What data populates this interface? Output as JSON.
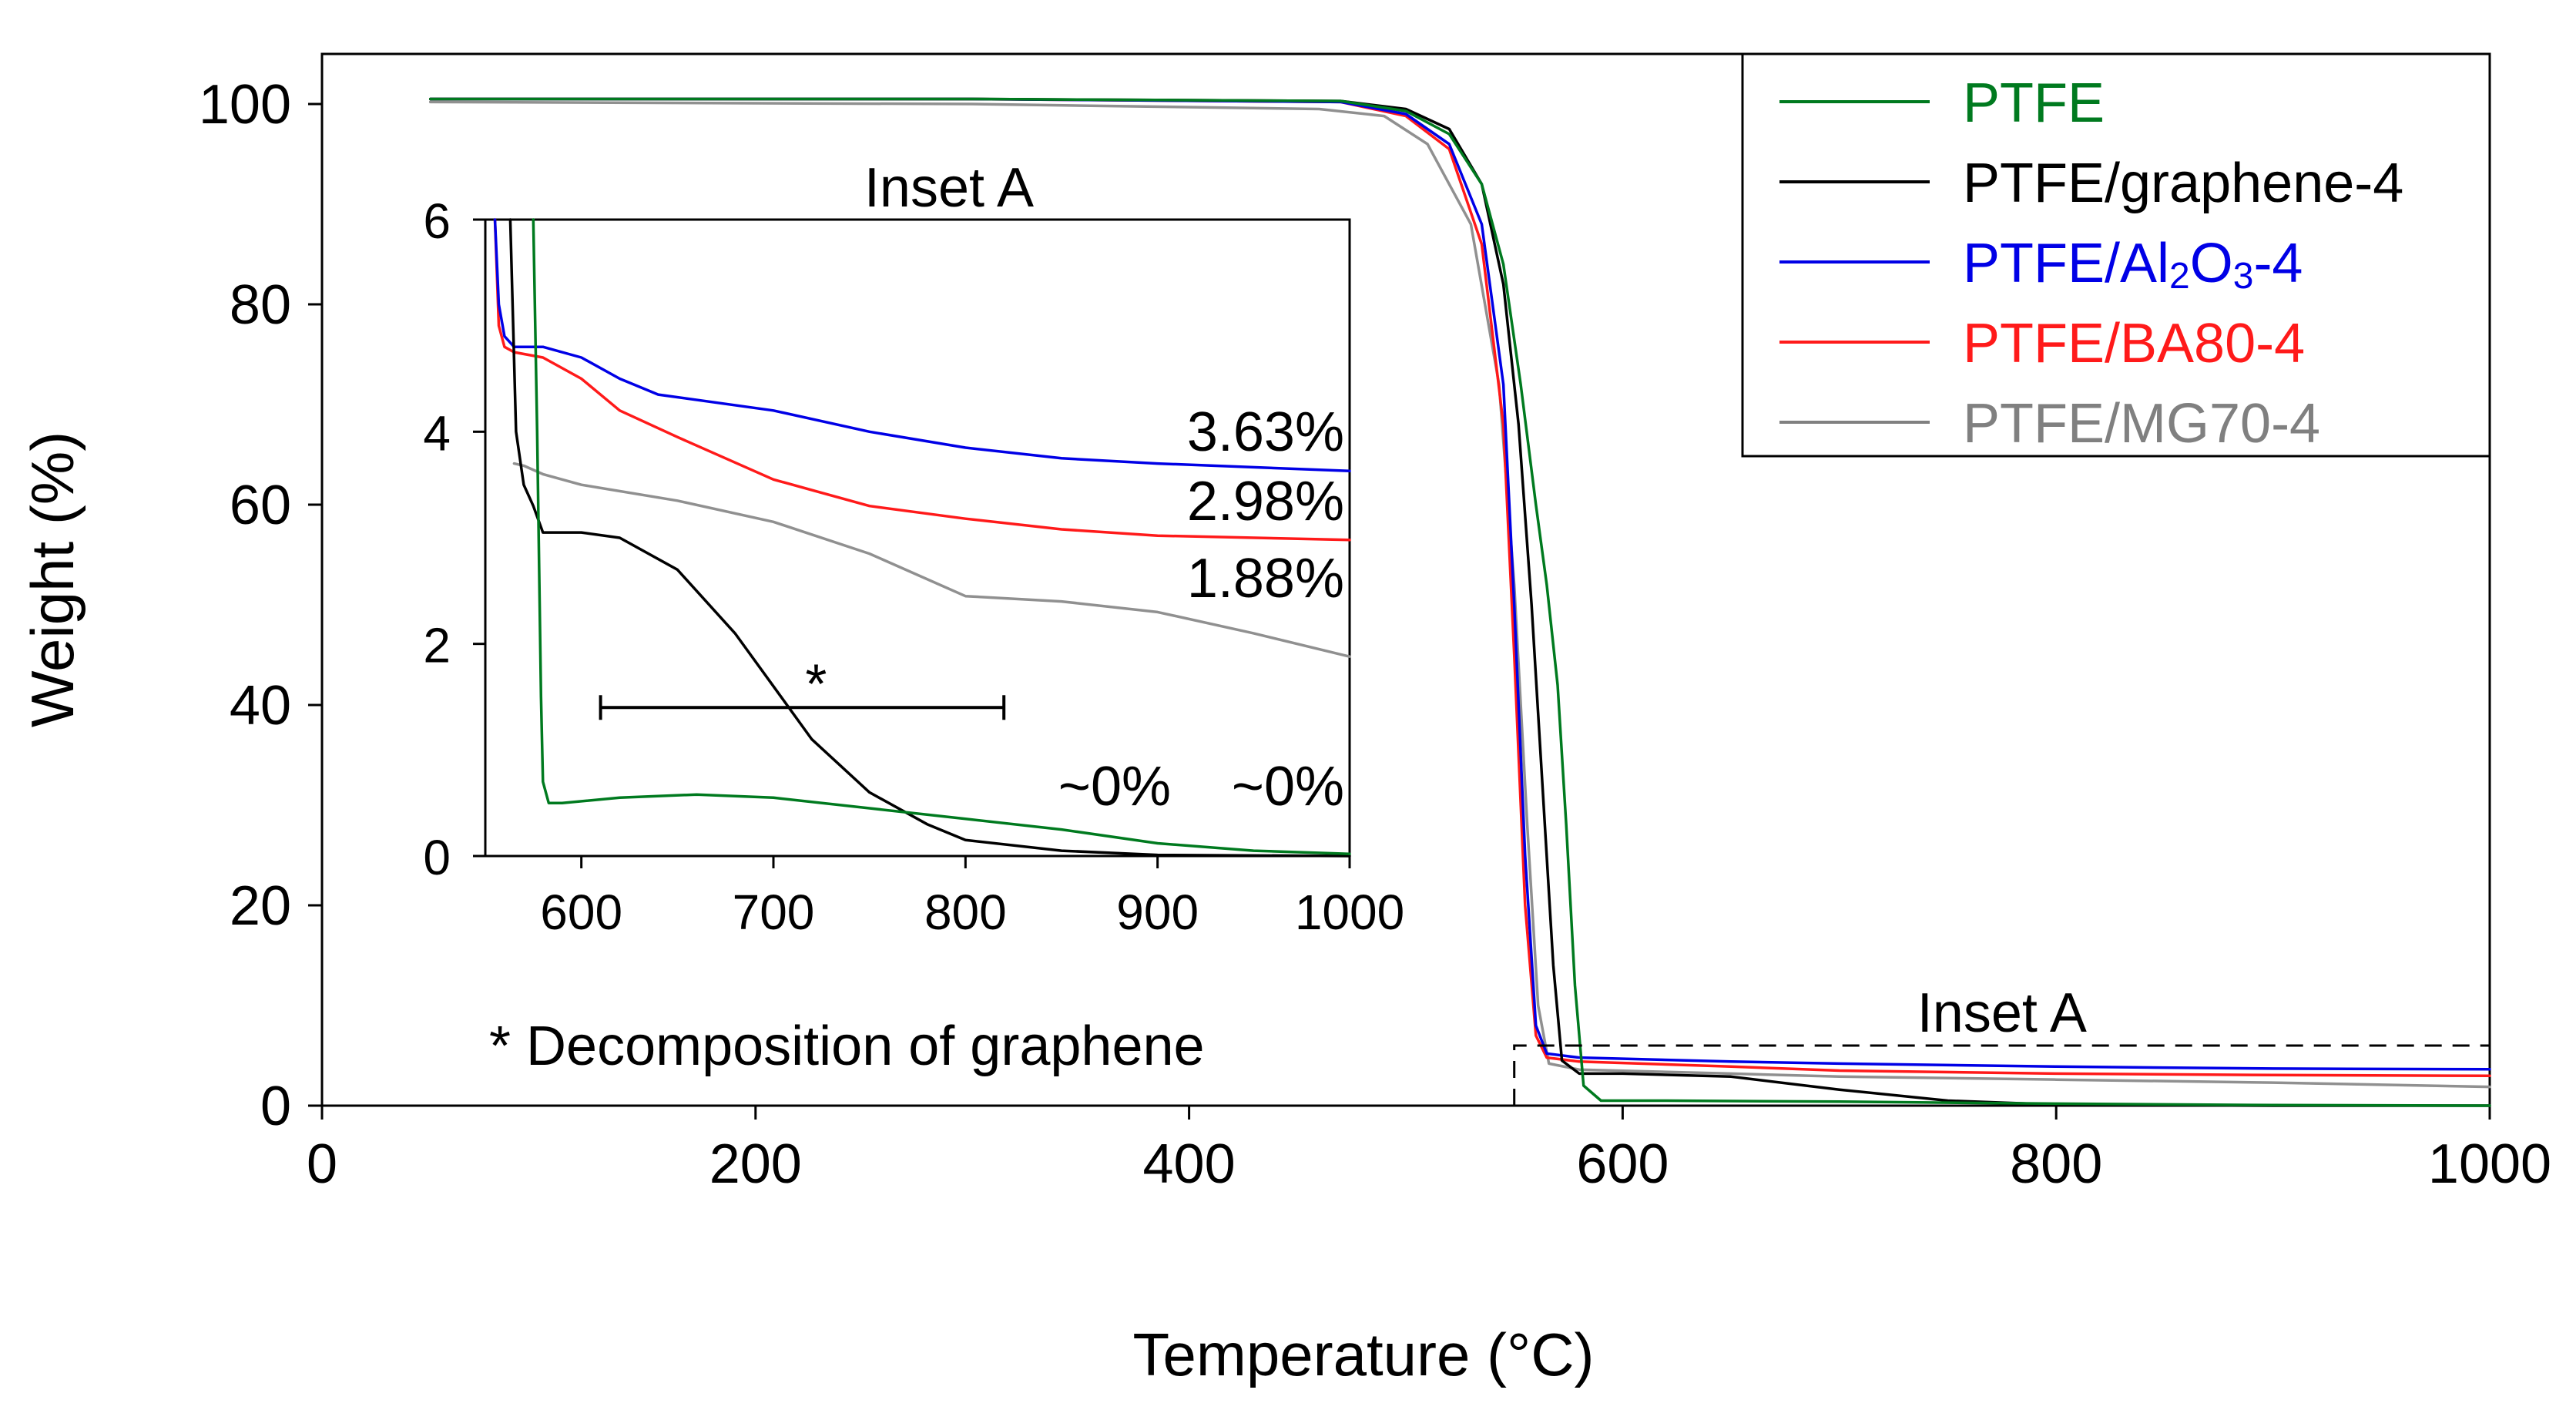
{
  "chart_data": [
    {
      "name": "main",
      "type": "line",
      "title": "",
      "xlabel": "Temperature (°C)",
      "ylabel": "Weight (%)",
      "xlim": [
        0,
        1000
      ],
      "ylim": [
        0,
        105
      ],
      "xticks": [
        0,
        200,
        400,
        600,
        800,
        1000
      ],
      "yticks": [
        0,
        20,
        40,
        60,
        80,
        100
      ],
      "legend_position": "top-right",
      "series": [
        {
          "name": "PTFE",
          "color": "#007a1f",
          "x": [
            50,
            300,
            470,
            500,
            520,
            535,
            545,
            553,
            560,
            565,
            570,
            574,
            578,
            582,
            590,
            620,
            700,
            800,
            900,
            1000
          ],
          "y": [
            100.5,
            100.5,
            100.3,
            99.3,
            97,
            92,
            84,
            72,
            60,
            52,
            42,
            28,
            12,
            2,
            0.5,
            0.5,
            0.4,
            0.2,
            0.05,
            0.0
          ]
        },
        {
          "name": "PTFE/graphene-4",
          "color": "#000000",
          "x": [
            50,
            300,
            470,
            500,
            520,
            535,
            545,
            552,
            558,
            563,
            568,
            572,
            580,
            600,
            650,
            700,
            750,
            800,
            900,
            1000
          ],
          "y": [
            100.5,
            100.5,
            100.3,
            99.5,
            97.5,
            92,
            82,
            68,
            50,
            32,
            14,
            4.5,
            3.2,
            3.2,
            2.9,
            1.6,
            0.5,
            0.1,
            0.0,
            0.0
          ]
        },
        {
          "name": "PTFE/Al2O3-4",
          "color": "#0000e6",
          "x": [
            50,
            300,
            470,
            500,
            520,
            535,
            545,
            550,
            555,
            560,
            565,
            580,
            650,
            700,
            800,
            900,
            1000
          ],
          "y": [
            100.5,
            100.5,
            100.2,
            99,
            96,
            88,
            72,
            50,
            25,
            8,
            5.2,
            4.8,
            4.4,
            4.2,
            3.9,
            3.7,
            3.63
          ]
        },
        {
          "name": "PTFE/BA80-4",
          "color": "#ff1a1a",
          "x": [
            50,
            300,
            470,
            500,
            520,
            535,
            545,
            550,
            555,
            560,
            565,
            580,
            650,
            700,
            800,
            900,
            1000
          ],
          "y": [
            100.5,
            100.5,
            100.2,
            98.8,
            95.5,
            86,
            68,
            45,
            20,
            7,
            4.8,
            4.4,
            3.9,
            3.5,
            3.2,
            3.05,
            2.98
          ]
        },
        {
          "name": "PTFE/MG70-4",
          "color": "#909090",
          "x": [
            50,
            300,
            460,
            490,
            510,
            530,
            543,
            550,
            556,
            561,
            566,
            580,
            650,
            700,
            800,
            900,
            1000
          ],
          "y": [
            100.2,
            100.0,
            99.5,
            98.8,
            96,
            88,
            72,
            52,
            28,
            10,
            4.2,
            3.6,
            3.2,
            2.9,
            2.6,
            2.3,
            1.88
          ]
        }
      ]
    },
    {
      "name": "inset",
      "type": "line",
      "title": "Inset A",
      "xlabel": "",
      "ylabel": "",
      "xlim": [
        550,
        1000
      ],
      "ylim": [
        0,
        6
      ],
      "xticks": [
        600,
        700,
        800,
        900,
        1000
      ],
      "yticks": [
        0,
        2,
        4,
        6
      ],
      "series": [
        {
          "name": "PTFE",
          "color": "#007a1f",
          "x": [
            575,
            577,
            579,
            580,
            583,
            590,
            620,
            660,
            700,
            750,
            800,
            850,
            900,
            950,
            1000
          ],
          "y": [
            6,
            4,
            1.5,
            0.7,
            0.5,
            0.5,
            0.55,
            0.58,
            0.55,
            0.45,
            0.35,
            0.25,
            0.12,
            0.05,
            0.02
          ]
        },
        {
          "name": "PTFE/graphene-4",
          "color": "#000000",
          "x": [
            563,
            566,
            570,
            575,
            580,
            600,
            620,
            650,
            680,
            700,
            720,
            750,
            780,
            800,
            850,
            900,
            1000
          ],
          "y": [
            6,
            4,
            3.5,
            3.3,
            3.05,
            3.05,
            3.0,
            2.7,
            2.1,
            1.6,
            1.1,
            0.6,
            0.3,
            0.15,
            0.05,
            0.01,
            0.0
          ]
        },
        {
          "name": "PTFE/Al2O3-4",
          "color": "#0000e6",
          "x": [
            555,
            557,
            560,
            565,
            580,
            600,
            620,
            640,
            700,
            750,
            800,
            850,
            900,
            1000
          ],
          "y": [
            6,
            5.2,
            4.9,
            4.8,
            4.8,
            4.7,
            4.5,
            4.35,
            4.2,
            4.0,
            3.85,
            3.75,
            3.7,
            3.63
          ]
        },
        {
          "name": "PTFE/BA80-4",
          "color": "#ff1a1a",
          "x": [
            555,
            557,
            560,
            565,
            580,
            600,
            620,
            650,
            700,
            750,
            800,
            850,
            900,
            1000
          ],
          "y": [
            6,
            5.0,
            4.8,
            4.75,
            4.7,
            4.5,
            4.2,
            3.95,
            3.55,
            3.3,
            3.18,
            3.08,
            3.02,
            2.98
          ]
        },
        {
          "name": "PTFE/MG70-4",
          "color": "#909090",
          "x": [
            565,
            570,
            580,
            600,
            650,
            700,
            750,
            800,
            850,
            900,
            950,
            1000
          ],
          "y": [
            3.7,
            3.68,
            3.6,
            3.5,
            3.35,
            3.15,
            2.85,
            2.45,
            2.4,
            2.3,
            2.1,
            1.88
          ]
        }
      ],
      "annotations": [
        {
          "text": "3.63%",
          "color": "#0000e6"
        },
        {
          "text": "2.98%",
          "color": "#ff1a1a"
        },
        {
          "text": "1.88%",
          "color": "#808080"
        },
        {
          "text": "~0%",
          "color": "#007a1f"
        },
        {
          "text": "~0%",
          "color": "#000000"
        },
        {
          "text": "*",
          "color": "#000000",
          "bracket_x": [
            610,
            820
          ],
          "bracket_y": 1.4
        }
      ]
    }
  ],
  "labels": {
    "inset_marker": "Inset A",
    "footnote": "* Decomposition of graphene"
  },
  "colors": {
    "PTFE": "#007a1f",
    "graphene": "#000000",
    "Al2O3": "#0000e6",
    "BA80": "#ff1a1a",
    "MG70": "#909090"
  },
  "legend": {
    "items": [
      {
        "label": "PTFE",
        "color": "#007a1f"
      },
      {
        "label": "PTFE/graphene-4",
        "color": "#000000"
      },
      {
        "label": "PTFE/Al2O3-4",
        "label_parts": [
          "PTFE/Al",
          "2",
          "O",
          "3",
          "-4"
        ],
        "color": "#0000e6"
      },
      {
        "label": "PTFE/BA80-4",
        "color": "#ff1a1a"
      },
      {
        "label": "PTFE/MG70-4",
        "color": "#808080"
      }
    ]
  }
}
